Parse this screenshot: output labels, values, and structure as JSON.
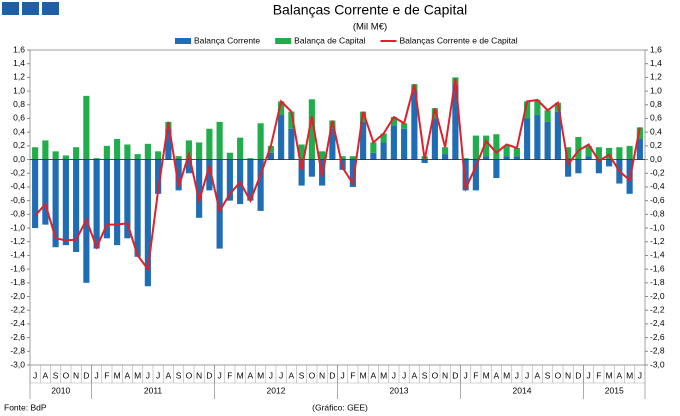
{
  "chart_data": {
    "type": "bar",
    "title": "Balanças Corrente e de Capital",
    "subtitle": "(Mil M€)",
    "source": "Fonte: BdP",
    "credit": "(Gráfico: GEE)",
    "stacked": true,
    "categories": [
      "J",
      "A",
      "S",
      "O",
      "N",
      "D",
      "J",
      "F",
      "M",
      "A",
      "M",
      "J",
      "J",
      "A",
      "S",
      "O",
      "N",
      "D",
      "J",
      "F",
      "M",
      "A",
      "M",
      "J",
      "J",
      "A",
      "S",
      "O",
      "N",
      "D",
      "J",
      "F",
      "M",
      "A",
      "M",
      "J",
      "J",
      "A",
      "S",
      "O",
      "N",
      "D",
      "J",
      "F",
      "M",
      "A",
      "M",
      "J",
      "J",
      "A",
      "S",
      "O",
      "N",
      "D",
      "J",
      "F",
      "M",
      "A",
      "M",
      "J"
    ],
    "groups": [
      {
        "label": "2010",
        "count": 6
      },
      {
        "label": "2011",
        "count": 12
      },
      {
        "label": "2012",
        "count": 12
      },
      {
        "label": "2013",
        "count": 12
      },
      {
        "label": "2014",
        "count": 12
      },
      {
        "label": "2015",
        "count": 6
      }
    ],
    "series": [
      {
        "name": "Balança Corrente",
        "color": "#1f6db4",
        "kind": "bar",
        "values": [
          -1.0,
          -0.95,
          -1.28,
          -1.25,
          -1.35,
          -1.8,
          -1.3,
          -1.15,
          -1.25,
          -1.15,
          -1.42,
          -1.85,
          -0.5,
          0.45,
          -0.45,
          -0.2,
          -0.85,
          -0.45,
          -1.3,
          -0.6,
          -0.65,
          -0.6,
          -0.75,
          0.1,
          0.65,
          0.45,
          -0.38,
          -0.25,
          -0.38,
          0.45,
          -0.15,
          -0.4,
          0.55,
          0.1,
          0.25,
          0.5,
          0.45,
          1.0,
          -0.05,
          0.6,
          0.08,
          1.1,
          -0.45,
          -0.45,
          0.05,
          -0.27,
          0.05,
          0.05,
          0.6,
          0.65,
          0.55,
          0.7,
          -0.25,
          -0.2,
          0.05,
          -0.2,
          -0.1,
          -0.35,
          -0.5,
          0.3
        ]
      },
      {
        "name": "Balança de Capital",
        "color": "#21ad4b",
        "kind": "bar",
        "values": [
          0.18,
          0.28,
          0.12,
          0.06,
          0.18,
          0.93,
          0.02,
          0.2,
          0.3,
          0.22,
          0.08,
          0.23,
          0.12,
          0.1,
          0.05,
          0.28,
          0.25,
          0.45,
          0.55,
          0.1,
          0.32,
          0.02,
          0.53,
          0.1,
          0.2,
          0.25,
          0.22,
          0.88,
          0.12,
          0.12,
          0.05,
          0.05,
          0.15,
          0.15,
          0.13,
          0.12,
          0.08,
          0.1,
          0.05,
          0.15,
          0.1,
          0.1,
          0.02,
          0.35,
          0.3,
          0.37,
          0.15,
          0.12,
          0.25,
          0.22,
          0.17,
          0.13,
          0.18,
          0.33,
          0.15,
          0.18,
          0.17,
          0.18,
          0.2,
          0.17
        ]
      },
      {
        "name": "Balanças Corrente e de Capital",
        "color": "#e0202a",
        "kind": "line",
        "values": [
          -0.82,
          -0.65,
          -1.15,
          -1.18,
          -1.17,
          -0.88,
          -1.28,
          -0.95,
          -0.95,
          -0.93,
          -1.4,
          -1.6,
          -0.45,
          0.55,
          -0.4,
          0.08,
          -0.6,
          -0.1,
          -0.75,
          -0.5,
          -0.33,
          -0.6,
          -0.22,
          0.2,
          0.85,
          0.7,
          -0.15,
          0.63,
          -0.25,
          0.57,
          -0.12,
          -0.35,
          0.7,
          0.25,
          0.38,
          0.62,
          0.53,
          1.1,
          0.0,
          0.75,
          0.18,
          1.18,
          -0.42,
          -0.1,
          0.27,
          0.1,
          0.22,
          0.17,
          0.85,
          0.87,
          0.72,
          0.83,
          -0.07,
          0.13,
          0.22,
          -0.02,
          0.07,
          -0.17,
          -0.3,
          0.47
        ]
      }
    ],
    "ylim": [
      -3.0,
      1.6
    ],
    "yticks": [
      {
        "value": 1.6,
        "label": "1,6"
      },
      {
        "value": 1.4,
        "label": "1,4"
      },
      {
        "value": 1.2,
        "label": "1,2"
      },
      {
        "value": 1.0,
        "label": "1,0"
      },
      {
        "value": 0.8,
        "label": "0,8"
      },
      {
        "value": 0.6,
        "label": "0,6"
      },
      {
        "value": 0.4,
        "label": "0,4"
      },
      {
        "value": 0.2,
        "label": "0,2"
      },
      {
        "value": 0,
        "label": "0,0"
      },
      {
        "value": -0.2,
        "label": "-0,2"
      },
      {
        "value": -0.4,
        "label": "-0,4"
      },
      {
        "value": -0.6,
        "label": "-0,6"
      },
      {
        "value": -0.8,
        "label": "-0,8"
      },
      {
        "value": -1.0,
        "label": "-1,0"
      },
      {
        "value": -1.2,
        "label": "-1,2"
      },
      {
        "value": -1.4,
        "label": "-1,4"
      },
      {
        "value": -1.6,
        "label": "-1,6"
      },
      {
        "value": -1.8,
        "label": "-1,8"
      },
      {
        "value": -2.0,
        "label": "-2,0"
      },
      {
        "value": -2.2,
        "label": "-2,2"
      },
      {
        "value": -2.4,
        "label": "-2,4"
      },
      {
        "value": -2.6,
        "label": "-2,6"
      },
      {
        "value": -2.8,
        "label": "-2,8"
      },
      {
        "value": -3.0,
        "label": "-3,0"
      }
    ],
    "legend": "top"
  }
}
